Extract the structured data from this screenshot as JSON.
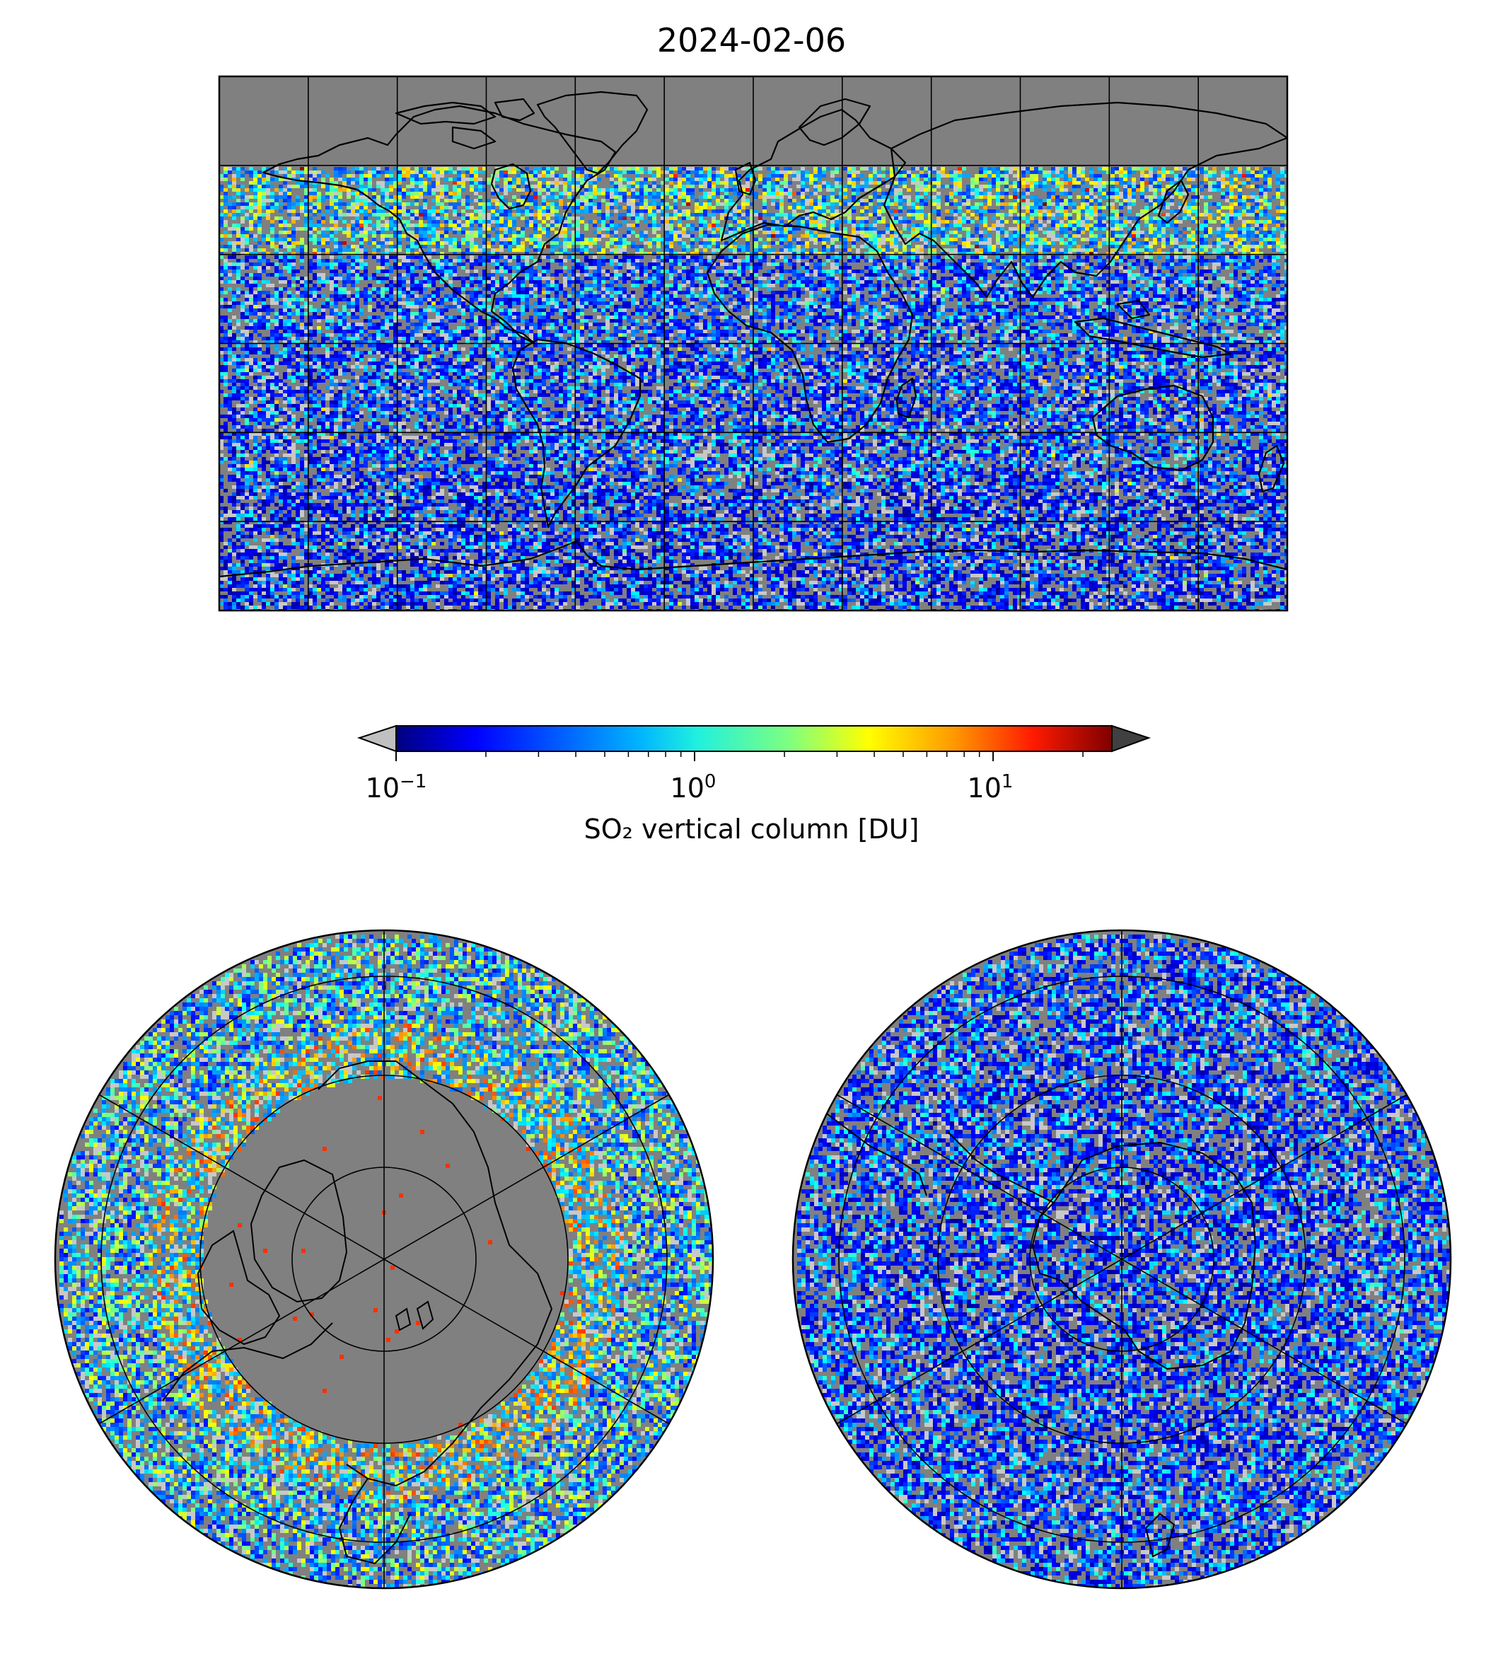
{
  "title": "2024-02-06",
  "colors": {
    "ocean_background": "#808080",
    "no_data_light": "#c8c8c8",
    "coastline": "#000000",
    "under_extension": "#c0c0c0",
    "over_extension": "#404040",
    "colormap": [
      "#00007f",
      "#0000ff",
      "#007fff",
      "#00ffff",
      "#7fff7f",
      "#ffff00",
      "#ff7f00",
      "#ff0000",
      "#7f0000"
    ]
  },
  "colorbar": {
    "label": "SO₂ vertical column [DU]",
    "scale": "log",
    "range": [
      0.1,
      25
    ],
    "extend": "both",
    "ticks": [
      {
        "base": "10",
        "exp": "−1",
        "value": 0.1
      },
      {
        "base": "10",
        "exp": "0",
        "value": 1
      },
      {
        "base": "10",
        "exp": "1",
        "value": 10
      }
    ]
  },
  "maps": [
    {
      "name": "global-map",
      "projection": "plate-carree",
      "lon_range": [
        -180,
        180
      ],
      "lat_range": [
        -90,
        90
      ],
      "grid_lon_step": 30,
      "grid_lat_step": 30
    },
    {
      "name": "north-polar-map",
      "projection": "north-polar-stereographic",
      "lat_limit": 30
    },
    {
      "name": "south-polar-map",
      "projection": "south-polar-stereographic",
      "lat_limit": -30
    }
  ]
}
